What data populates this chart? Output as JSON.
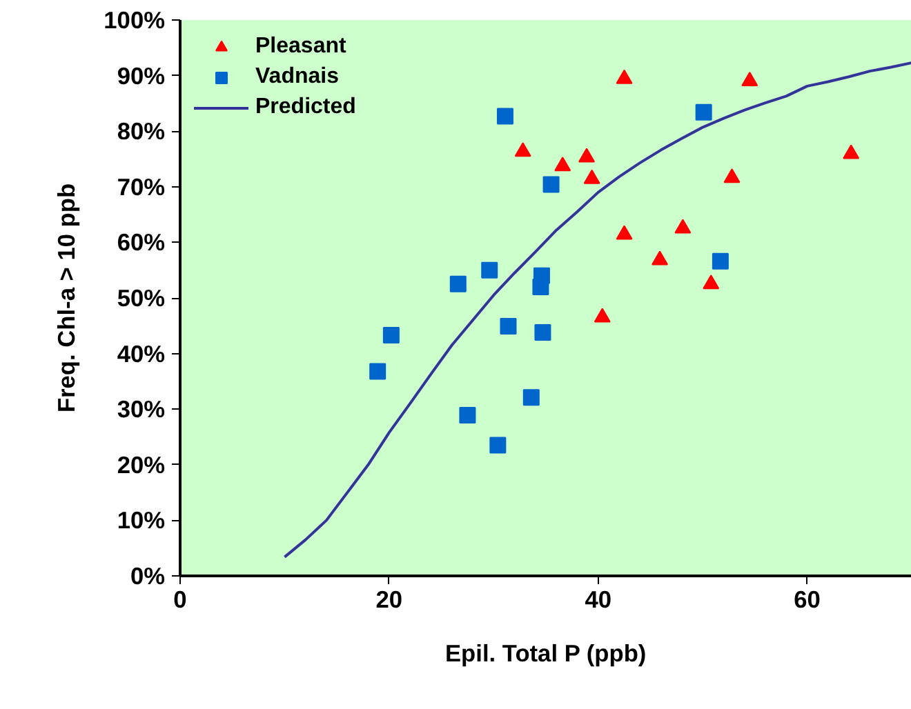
{
  "chart_data": {
    "type": "scatter",
    "xlabel": "Epil. Total P (ppb)",
    "ylabel": "Freq. Chl-a > 10 ppb",
    "xlim": [
      0,
      70
    ],
    "xticks": [
      0,
      20,
      40,
      60
    ],
    "ylim": [
      0,
      100
    ],
    "yticks": [
      {
        "value": 0,
        "label": "0%"
      },
      {
        "value": 10,
        "label": "10%"
      },
      {
        "value": 20,
        "label": "20%"
      },
      {
        "value": 30,
        "label": "30%"
      },
      {
        "value": 40,
        "label": "40%"
      },
      {
        "value": 50,
        "label": "50%"
      },
      {
        "value": 60,
        "label": "60%"
      },
      {
        "value": 70,
        "label": "70%"
      },
      {
        "value": 80,
        "label": "80%"
      },
      {
        "value": 90,
        "label": "90%"
      },
      {
        "value": 100,
        "label": "100%"
      }
    ],
    "grid": false,
    "legend": "top left",
    "series": [
      {
        "name": "Pleasant",
        "marker": "triangle",
        "color": "#ff0000",
        "x": [
          32.8,
          36.6,
          38.9,
          39.4,
          42.5,
          42.5,
          40.4,
          54.5,
          64.2,
          52.8,
          48.1,
          45.9,
          50.8
        ],
        "values": [
          76.3,
          73.7,
          75.3,
          71.4,
          89.4,
          61.4,
          46.5,
          89.0,
          75.9,
          71.6,
          62.5,
          56.8,
          52.5
        ]
      },
      {
        "name": "Vadnais",
        "marker": "square",
        "color": "#0066cc",
        "x": [
          31.1,
          35.5,
          29.6,
          26.6,
          34.6,
          34.5,
          31.4,
          34.7,
          20.2,
          18.9,
          33.6,
          27.5,
          30.4,
          50.1,
          51.7
        ],
        "values": [
          82.7,
          70.4,
          55.0,
          52.5,
          54.0,
          52.0,
          44.9,
          43.8,
          43.3,
          36.8,
          32.1,
          28.9,
          23.5,
          83.4,
          56.6
        ]
      },
      {
        "name": "Predicted",
        "type": "line",
        "line_style": "solid",
        "color": "#333399",
        "x": [
          10,
          12,
          14,
          16,
          18,
          20,
          22,
          24,
          26,
          28,
          30,
          32,
          34,
          36,
          38,
          40,
          42,
          44,
          46,
          48,
          50,
          52,
          54,
          56,
          58,
          60,
          62,
          64,
          66,
          68,
          70
        ],
        "values": [
          3.4,
          6.5,
          10,
          15,
          20,
          25.8,
          31,
          36.3,
          41.5,
          46,
          50.5,
          54.5,
          58.3,
          62.2,
          65.5,
          69,
          71.8,
          74.3,
          76.6,
          78.7,
          80.7,
          82.3,
          83.8,
          85.1,
          86.3,
          88.1,
          88.9,
          89.8,
          90.8,
          91.5,
          92.3
        ]
      }
    ]
  }
}
